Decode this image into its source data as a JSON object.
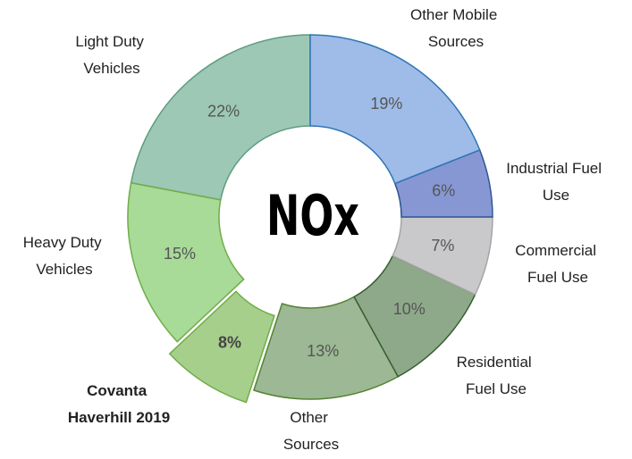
{
  "chart_data": {
    "type": "donut",
    "center_label": "NOx",
    "categories": [
      "Other Mobile Sources",
      "Industrial Fuel Use",
      "Commercial Fuel Use",
      "Residential Fuel Use",
      "Other Sources",
      "Covanta Haverhill 2019",
      "Heavy Duty Vehicles",
      "Light Duty Vehicles"
    ],
    "values": [
      19,
      6,
      7,
      10,
      13,
      8,
      15,
      22
    ],
    "value_labels": [
      "19%",
      "6%",
      "7%",
      "10%",
      "13%",
      "8%",
      "15%",
      "22%"
    ],
    "colors": [
      "#9fbbe8",
      "#8797d3",
      "#c9c9cb",
      "#8ea98a",
      "#9db894",
      "#a6cf8c",
      "#a8da98",
      "#9dc8b5"
    ],
    "edge_colors": [
      "#2e75b6",
      "#2f5597",
      "#a5a5a5",
      "#375e32",
      "#548235",
      "#70ad47",
      "#70ad47",
      "#5e9c80"
    ],
    "highlight": "Covanta Haverhill 2019"
  }
}
